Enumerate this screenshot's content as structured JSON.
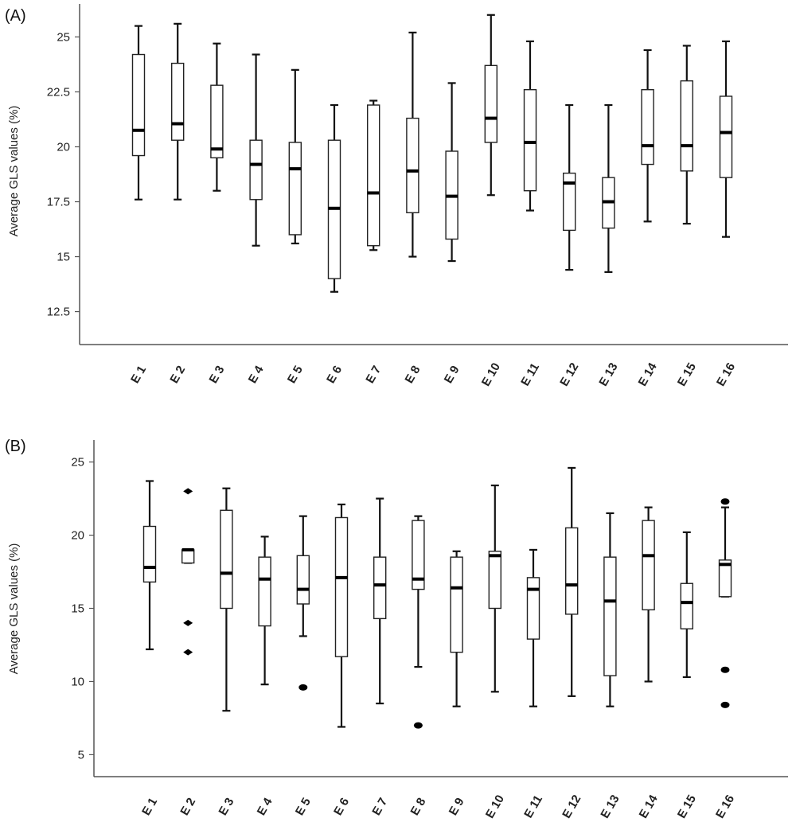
{
  "chart_data": [
    {
      "type": "boxplot",
      "panel_label": "(A)",
      "ylabel": "Average GLS values (%)",
      "ylim": [
        11,
        26.5
      ],
      "yticks": [
        12.5,
        15,
        17.5,
        20,
        22.5,
        25
      ],
      "ytick_labels": [
        "12.5",
        "15",
        "17.5",
        "20",
        "22.5",
        "25"
      ],
      "categories": [
        "E1",
        "E2",
        "E3",
        "E4",
        "E5",
        "E6",
        "E7",
        "E8",
        "E9",
        "E10",
        "E11",
        "E12",
        "E13",
        "E14",
        "E15",
        "E16"
      ],
      "boxes": [
        {
          "min": 17.6,
          "q1": 19.6,
          "median": 20.75,
          "q3": 24.2,
          "max": 25.5
        },
        {
          "min": 17.6,
          "q1": 20.3,
          "median": 21.05,
          "q3": 23.8,
          "max": 25.6
        },
        {
          "min": 18.0,
          "q1": 19.5,
          "median": 19.9,
          "q3": 22.8,
          "max": 24.7
        },
        {
          "min": 15.5,
          "q1": 17.6,
          "median": 19.2,
          "q3": 20.3,
          "max": 24.2
        },
        {
          "min": 15.6,
          "q1": 16.0,
          "median": 19.0,
          "q3": 20.2,
          "max": 23.5
        },
        {
          "min": 13.4,
          "q1": 14.0,
          "median": 17.2,
          "q3": 20.3,
          "max": 21.9
        },
        {
          "min": 15.3,
          "q1": 15.5,
          "median": 17.9,
          "q3": 21.9,
          "max": 22.1
        },
        {
          "min": 15.0,
          "q1": 17.0,
          "median": 18.9,
          "q3": 21.3,
          "max": 25.2
        },
        {
          "min": 14.8,
          "q1": 15.8,
          "median": 17.75,
          "q3": 19.8,
          "max": 22.9
        },
        {
          "min": 17.8,
          "q1": 20.2,
          "median": 21.3,
          "q3": 23.7,
          "max": 26.0
        },
        {
          "min": 17.1,
          "q1": 18.0,
          "median": 20.2,
          "q3": 22.6,
          "max": 24.8
        },
        {
          "min": 14.4,
          "q1": 16.2,
          "median": 18.35,
          "q3": 18.8,
          "max": 21.9
        },
        {
          "min": 14.3,
          "q1": 16.3,
          "median": 17.5,
          "q3": 18.6,
          "max": 21.9
        },
        {
          "min": 16.6,
          "q1": 19.2,
          "median": 20.05,
          "q3": 22.6,
          "max": 24.4
        },
        {
          "min": 16.5,
          "q1": 18.9,
          "median": 20.05,
          "q3": 23.0,
          "max": 24.6
        },
        {
          "min": 15.9,
          "q1": 18.6,
          "median": 20.65,
          "q3": 22.3,
          "max": 24.8
        }
      ],
      "outliers": []
    },
    {
      "type": "boxplot",
      "panel_label": "(B)",
      "ylabel": "Average GLS values (%)",
      "ylim": [
        3.5,
        26.5
      ],
      "yticks": [
        5,
        10,
        15,
        20,
        25
      ],
      "ytick_labels": [
        "5",
        "10",
        "15",
        "20",
        "25"
      ],
      "categories": [
        "E1",
        "E2",
        "E3",
        "E4",
        "E5",
        "E6",
        "E7",
        "E8",
        "E9",
        "E10",
        "E11",
        "E12",
        "E13",
        "E14",
        "E15",
        "E16"
      ],
      "boxes": [
        {
          "min": 12.2,
          "q1": 16.8,
          "median": 17.8,
          "q3": 20.6,
          "max": 23.7
        },
        {
          "min": 18.1,
          "q1": 18.1,
          "median": 19.0,
          "q3": 19.0,
          "max": 19.0
        },
        {
          "min": 8.0,
          "q1": 15.0,
          "median": 17.4,
          "q3": 21.7,
          "max": 23.2
        },
        {
          "min": 9.8,
          "q1": 13.8,
          "median": 17.0,
          "q3": 18.5,
          "max": 19.9
        },
        {
          "min": 13.1,
          "q1": 15.3,
          "median": 16.3,
          "q3": 18.6,
          "max": 21.3
        },
        {
          "min": 6.9,
          "q1": 11.7,
          "median": 17.1,
          "q3": 21.2,
          "max": 22.1
        },
        {
          "min": 8.5,
          "q1": 14.3,
          "median": 16.6,
          "q3": 18.5,
          "max": 22.5
        },
        {
          "min": 11.0,
          "q1": 16.3,
          "median": 17.0,
          "q3": 21.0,
          "max": 21.3
        },
        {
          "min": 8.3,
          "q1": 12.0,
          "median": 16.4,
          "q3": 18.5,
          "max": 18.9
        },
        {
          "min": 9.3,
          "q1": 15.0,
          "median": 18.6,
          "q3": 18.9,
          "max": 23.4
        },
        {
          "min": 8.3,
          "q1": 12.9,
          "median": 16.3,
          "q3": 17.1,
          "max": 19.0
        },
        {
          "min": 9.0,
          "q1": 14.6,
          "median": 16.6,
          "q3": 20.5,
          "max": 24.6
        },
        {
          "min": 8.3,
          "q1": 10.4,
          "median": 15.5,
          "q3": 18.5,
          "max": 21.5
        },
        {
          "min": 10.0,
          "q1": 14.9,
          "median": 18.6,
          "q3": 21.0,
          "max": 21.9
        },
        {
          "min": 10.3,
          "q1": 13.6,
          "median": 15.4,
          "q3": 16.7,
          "max": 20.2
        },
        {
          "min": 15.8,
          "q1": 15.8,
          "median": 18.0,
          "q3": 18.3,
          "max": 21.9
        }
      ],
      "outliers": [
        {
          "category": "E2",
          "value": 23.0,
          "shape": "diamond"
        },
        {
          "category": "E2",
          "value": 14.0,
          "shape": "diamond"
        },
        {
          "category": "E2",
          "value": 12.0,
          "shape": "diamond"
        },
        {
          "category": "E5",
          "value": 9.6,
          "shape": "dot"
        },
        {
          "category": "E8",
          "value": 7.0,
          "shape": "dot"
        },
        {
          "category": "E16",
          "value": 22.3,
          "shape": "dot"
        },
        {
          "category": "E16",
          "value": 10.8,
          "shape": "dot"
        },
        {
          "category": "E16",
          "value": 8.4,
          "shape": "dot"
        }
      ]
    }
  ]
}
